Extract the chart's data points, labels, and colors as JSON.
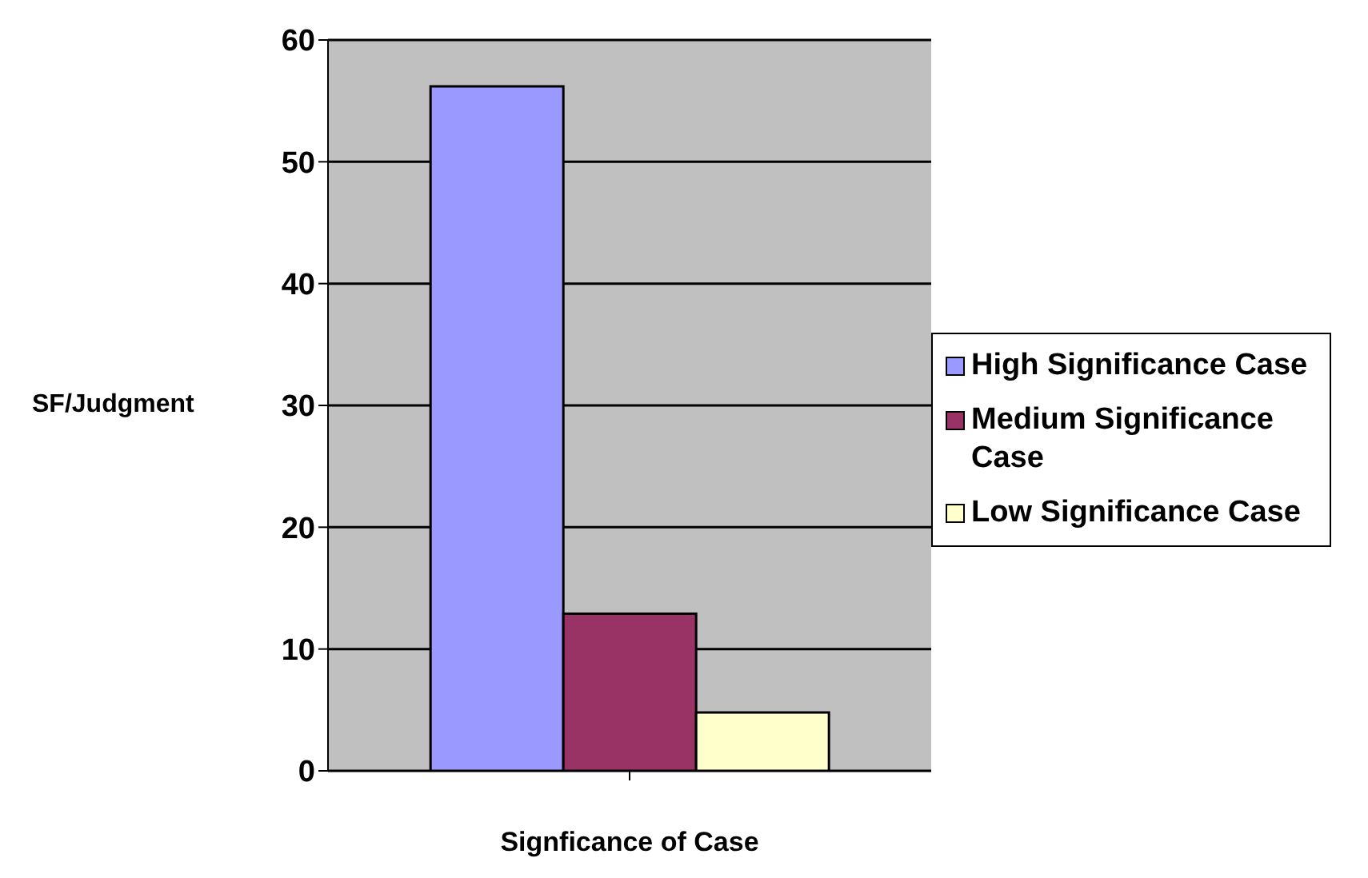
{
  "chart_data": {
    "type": "bar",
    "xlabel": "Signficance of Case",
    "ylabel": "SF/Judgment",
    "categories": [
      null
    ],
    "series": [
      {
        "name": "High Significance Case",
        "color": "#9999ff",
        "values": [
          56.2
        ]
      },
      {
        "name": "Medium Significance Case",
        "color": "#993366",
        "values": [
          12.9
        ]
      },
      {
        "name": "Low Significance Case",
        "color": "#ffffcc",
        "values": [
          4.8
        ]
      }
    ],
    "ylim": [
      0,
      60
    ],
    "yticks": [
      0,
      10,
      20,
      30,
      40,
      50,
      60
    ],
    "grid": "y",
    "legend": "right"
  }
}
